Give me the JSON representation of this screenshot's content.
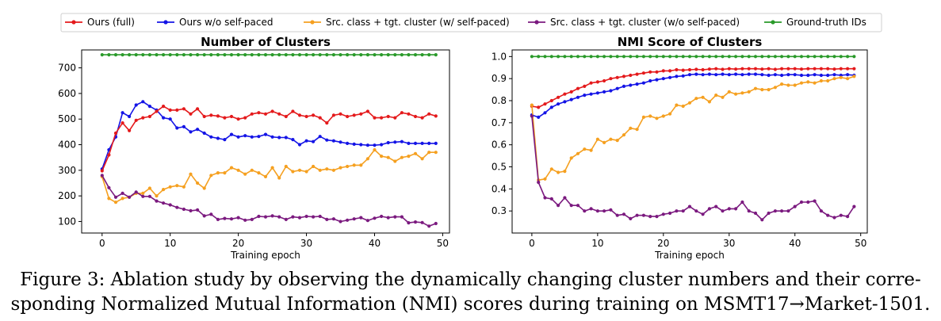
{
  "legend": {
    "items": [
      {
        "label": "Ours (full)",
        "color": "#e41a1c"
      },
      {
        "label": "Ours w/o self-paced",
        "color": "#1414e6"
      },
      {
        "label": "Src. class + tgt. cluster (w/ self-paced)",
        "color": "#f5a020"
      },
      {
        "label": "Src. class + tgt. cluster (w/o self-paced)",
        "color": "#7b1a7f"
      },
      {
        "label": "Ground-truth IDs",
        "color": "#2a9a2a"
      }
    ]
  },
  "chart_data": [
    {
      "type": "line",
      "title": "Number of Clusters",
      "xlabel": "Training epoch",
      "ylabel": "",
      "xlim": [
        -3,
        51
      ],
      "ylim": [
        55,
        770
      ],
      "xticks": [
        0,
        10,
        20,
        30,
        40,
        50
      ],
      "yticks": [
        100,
        200,
        300,
        400,
        500,
        600,
        700
      ],
      "ytick_labels": [
        "100",
        "200",
        "300",
        "400",
        "500",
        "600",
        "700"
      ],
      "grid": false,
      "series": [
        {
          "name": "Ground-truth IDs",
          "color": "#2a9a2a",
          "values": [
            751,
            751,
            751,
            751,
            751,
            751,
            751,
            751,
            751,
            751,
            751,
            751,
            751,
            751,
            751,
            751,
            751,
            751,
            751,
            751,
            751,
            751,
            751,
            751,
            751,
            751,
            751,
            751,
            751,
            751,
            751,
            751,
            751,
            751,
            751,
            751,
            751,
            751,
            751,
            751,
            751,
            751,
            751,
            751,
            751,
            751,
            751,
            751,
            751,
            751
          ]
        },
        {
          "name": "Ours w/o self-paced",
          "color": "#1414e6",
          "values": [
            305,
            380,
            430,
            525,
            510,
            555,
            568,
            550,
            535,
            505,
            500,
            465,
            470,
            450,
            460,
            445,
            430,
            425,
            420,
            440,
            430,
            435,
            430,
            432,
            440,
            430,
            428,
            428,
            420,
            400,
            415,
            412,
            432,
            418,
            415,
            410,
            405,
            402,
            400,
            398,
            398,
            400,
            408,
            410,
            412,
            405,
            405,
            405,
            405,
            405
          ]
        },
        {
          "name": "Ours (full)",
          "color": "#e41a1c",
          "values": [
            298,
            360,
            445,
            485,
            455,
            495,
            505,
            510,
            530,
            550,
            535,
            535,
            540,
            520,
            540,
            510,
            515,
            512,
            505,
            510,
            500,
            505,
            520,
            525,
            520,
            530,
            520,
            510,
            530,
            515,
            510,
            515,
            505,
            485,
            515,
            520,
            510,
            515,
            520,
            530,
            505,
            505,
            510,
            505,
            525,
            520,
            510,
            505,
            520,
            512
          ]
        },
        {
          "name": "Src. class + tgt. cluster (w/ self-paced)",
          "color": "#f5a020",
          "values": [
            275,
            190,
            175,
            190,
            195,
            210,
            210,
            230,
            200,
            225,
            235,
            240,
            235,
            285,
            250,
            230,
            280,
            290,
            290,
            310,
            300,
            285,
            300,
            290,
            275,
            310,
            270,
            315,
            295,
            300,
            295,
            315,
            300,
            305,
            300,
            310,
            315,
            320,
            320,
            345,
            380,
            355,
            350,
            335,
            350,
            355,
            365,
            345,
            370,
            370
          ]
        },
        {
          "name": "Src. class + tgt. cluster (w/o self-paced)",
          "color": "#7b1a7f",
          "values": [
            280,
            232,
            195,
            210,
            195,
            215,
            198,
            198,
            180,
            172,
            165,
            155,
            148,
            142,
            145,
            122,
            128,
            108,
            112,
            110,
            115,
            105,
            108,
            120,
            118,
            122,
            118,
            108,
            118,
            115,
            120,
            118,
            120,
            108,
            110,
            100,
            105,
            110,
            115,
            104,
            113,
            120,
            115,
            118,
            118,
            95,
            98,
            96,
            82,
            92
          ]
        }
      ]
    },
    {
      "type": "line",
      "title": "NMI Score of Clusters",
      "xlabel": "Training epoch",
      "ylabel": "",
      "xlim": [
        -3,
        51
      ],
      "ylim": [
        0.2,
        1.03
      ],
      "xticks": [
        0,
        10,
        20,
        30,
        40,
        50
      ],
      "yticks": [
        0.3,
        0.4,
        0.5,
        0.6,
        0.7,
        0.8,
        0.9,
        1.0
      ],
      "ytick_labels": [
        "0.3",
        "0.4",
        "0.5",
        "0.6",
        "0.7",
        "0.8",
        "0.9",
        "1.0"
      ],
      "grid": false,
      "series": [
        {
          "name": "Ground-truth IDs",
          "color": "#2a9a2a",
          "values": [
            1.0,
            1.0,
            1.0,
            1.0,
            1.0,
            1.0,
            1.0,
            1.0,
            1.0,
            1.0,
            1.0,
            1.0,
            1.0,
            1.0,
            1.0,
            1.0,
            1.0,
            1.0,
            1.0,
            1.0,
            1.0,
            1.0,
            1.0,
            1.0,
            1.0,
            1.0,
            1.0,
            1.0,
            1.0,
            1.0,
            1.0,
            1.0,
            1.0,
            1.0,
            1.0,
            1.0,
            1.0,
            1.0,
            1.0,
            1.0,
            1.0,
            1.0,
            1.0,
            1.0,
            1.0,
            1.0,
            1.0,
            1.0,
            1.0,
            1.0
          ]
        },
        {
          "name": "Ours (full)",
          "color": "#e41a1c",
          "values": [
            0.775,
            0.77,
            0.785,
            0.8,
            0.815,
            0.83,
            0.84,
            0.855,
            0.865,
            0.88,
            0.885,
            0.89,
            0.9,
            0.905,
            0.91,
            0.915,
            0.92,
            0.925,
            0.93,
            0.93,
            0.935,
            0.935,
            0.94,
            0.938,
            0.94,
            0.942,
            0.94,
            0.943,
            0.945,
            0.942,
            0.945,
            0.943,
            0.945,
            0.945,
            0.945,
            0.943,
            0.945,
            0.942,
            0.945,
            0.945,
            0.945,
            0.943,
            0.945,
            0.945,
            0.945,
            0.945,
            0.943,
            0.945,
            0.945,
            0.945
          ]
        },
        {
          "name": "Ours w/o self-paced",
          "color": "#1414e6",
          "values": [
            0.735,
            0.725,
            0.745,
            0.77,
            0.785,
            0.795,
            0.805,
            0.815,
            0.825,
            0.83,
            0.835,
            0.84,
            0.845,
            0.855,
            0.865,
            0.87,
            0.875,
            0.88,
            0.89,
            0.895,
            0.9,
            0.905,
            0.91,
            0.912,
            0.918,
            0.92,
            0.918,
            0.92,
            0.918,
            0.92,
            0.918,
            0.92,
            0.918,
            0.92,
            0.92,
            0.918,
            0.915,
            0.918,
            0.915,
            0.918,
            0.918,
            0.915,
            0.915,
            0.918,
            0.915,
            0.915,
            0.918,
            0.915,
            0.918,
            0.915
          ]
        },
        {
          "name": "Src. class + tgt. cluster (w/ self-paced)",
          "color": "#f5a020",
          "values": [
            0.78,
            0.44,
            0.445,
            0.49,
            0.475,
            0.48,
            0.54,
            0.56,
            0.58,
            0.575,
            0.625,
            0.61,
            0.625,
            0.62,
            0.645,
            0.675,
            0.67,
            0.725,
            0.73,
            0.72,
            0.73,
            0.74,
            0.78,
            0.775,
            0.79,
            0.81,
            0.815,
            0.795,
            0.825,
            0.815,
            0.84,
            0.83,
            0.835,
            0.84,
            0.855,
            0.85,
            0.85,
            0.86,
            0.875,
            0.87,
            0.87,
            0.88,
            0.885,
            0.88,
            0.89,
            0.89,
            0.9,
            0.905,
            0.9,
            0.91
          ]
        },
        {
          "name": "Src. class + tgt. cluster (w/o self-paced)",
          "color": "#7b1a7f",
          "values": [
            0.73,
            0.43,
            0.36,
            0.355,
            0.325,
            0.36,
            0.325,
            0.325,
            0.3,
            0.31,
            0.3,
            0.3,
            0.305,
            0.28,
            0.285,
            0.265,
            0.28,
            0.28,
            0.275,
            0.275,
            0.285,
            0.29,
            0.3,
            0.3,
            0.32,
            0.3,
            0.285,
            0.31,
            0.32,
            0.3,
            0.31,
            0.31,
            0.34,
            0.3,
            0.29,
            0.26,
            0.29,
            0.3,
            0.3,
            0.3,
            0.32,
            0.34,
            0.34,
            0.345,
            0.3,
            0.28,
            0.27,
            0.28,
            0.275,
            0.32
          ]
        }
      ]
    }
  ],
  "caption": {
    "line1": "Figure 3: Ablation study by observing the dynamically changing cluster numbers and their corre-",
    "line2": "sponding Normalized Mutual Information (NMI) scores during training on MSMT17→Market-1501."
  }
}
